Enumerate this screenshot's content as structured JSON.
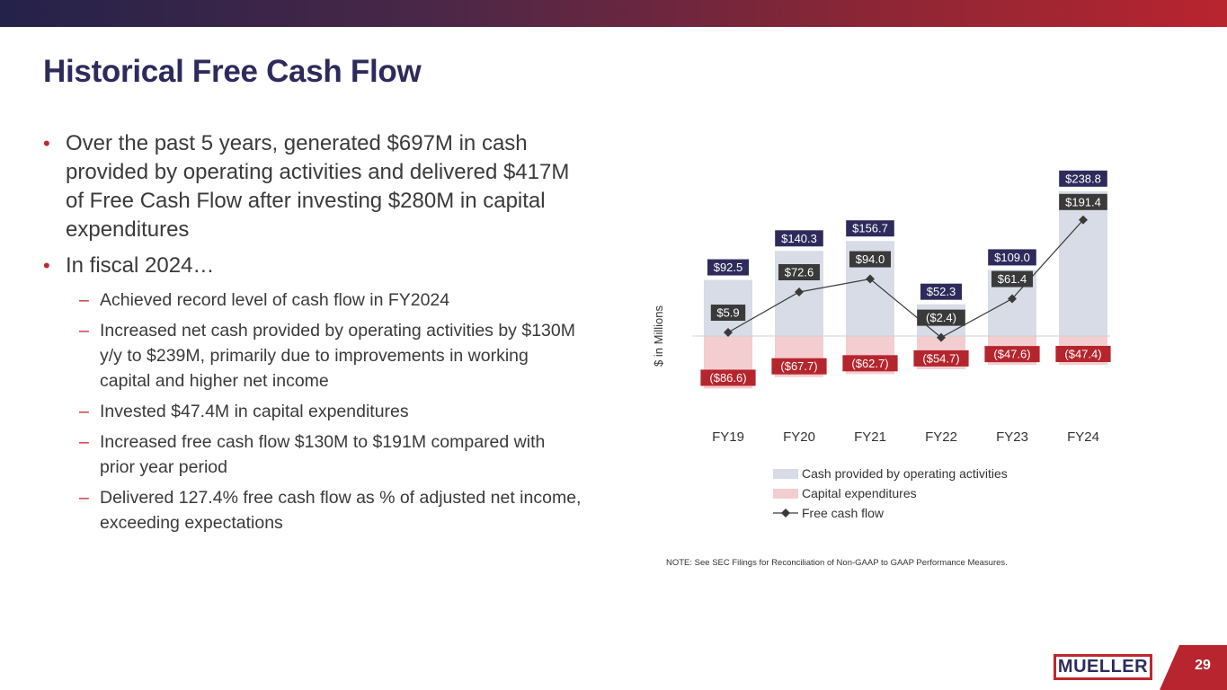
{
  "slide": {
    "title": "Historical Free Cash Flow",
    "page_number": "29",
    "logo_text": "MUELLER",
    "note": "NOTE:  See SEC Filings for Reconciliation of Non-GAAP to GAAP Performance Measures."
  },
  "bullets": [
    {
      "text": "Over the past 5 years, generated $697M in cash provided by operating activities and delivered $417M of Free Cash Flow after investing $280M in capital expenditures"
    },
    {
      "text": "In fiscal 2024…",
      "subs": [
        "Achieved record level of cash flow in FY2024",
        "Increased net cash provided by operating activities by $130M y/y to $239M, primarily due to improvements in working capital and higher net income",
        "Invested $47.4M in capital expenditures",
        "Increased free cash flow $130M to $191M compared with prior year period",
        "Delivered 127.4% free cash flow as % of adjusted net income, exceeding expectations"
      ]
    }
  ],
  "chart_data": {
    "type": "bar",
    "categories": [
      "FY19",
      "FY20",
      "FY21",
      "FY22",
      "FY23",
      "FY24"
    ],
    "ylabel": "$ in Millions",
    "series": [
      {
        "name": "Cash provided by operating activities",
        "kind": "bar",
        "color": "#d7dce6",
        "values": [
          92.5,
          140.3,
          156.7,
          52.3,
          109.0,
          238.8
        ],
        "labels": [
          "$92.5",
          "$140.3",
          "$156.7",
          "$52.3",
          "$109.0",
          "$238.8"
        ],
        "label_color": "#2e2b5c"
      },
      {
        "name": "Capital expenditures",
        "kind": "bar",
        "color": "#f3cdd0",
        "values": [
          -86.6,
          -67.7,
          -62.7,
          -54.7,
          -47.6,
          -47.4
        ],
        "labels": [
          "($86.6)",
          "($67.7)",
          "($62.7)",
          "($54.7)",
          "($47.6)",
          "($47.4)"
        ],
        "label_color": "#b5252d"
      },
      {
        "name": "Free cash flow",
        "kind": "line",
        "color": "#3a3a3a",
        "values": [
          5.9,
          72.6,
          94.0,
          -2.4,
          61.4,
          191.4
        ],
        "labels": [
          "$5.9",
          "$72.6",
          "$94.0",
          "($2.4)",
          "$61.4",
          "$191.4"
        ],
        "label_color": "#3a3a3a"
      }
    ],
    "legend_position": "bottom"
  }
}
